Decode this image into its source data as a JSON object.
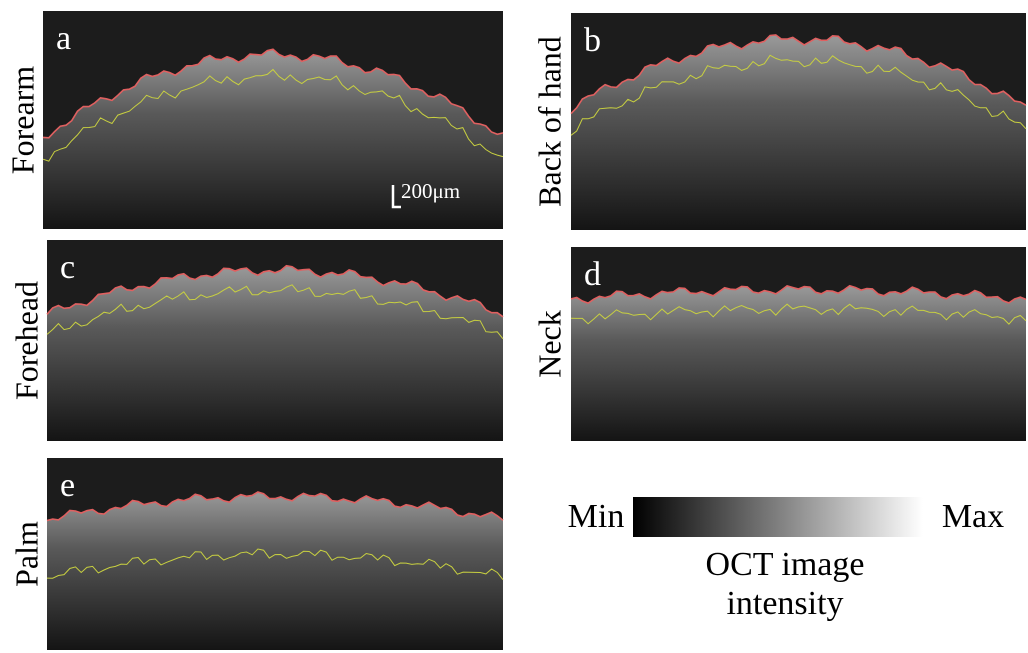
{
  "panels": [
    {
      "letter": "a",
      "label": "Forearm"
    },
    {
      "letter": "b",
      "label": "Back of hand"
    },
    {
      "letter": "c",
      "label": "Forehead"
    },
    {
      "letter": "d",
      "label": "Neck"
    },
    {
      "letter": "e",
      "label": "Palm"
    }
  ],
  "scale_bar": "200μm",
  "colorbar": {
    "min": "Min",
    "max": "Max",
    "title": [
      "OCT image",
      "intensity"
    ]
  }
}
